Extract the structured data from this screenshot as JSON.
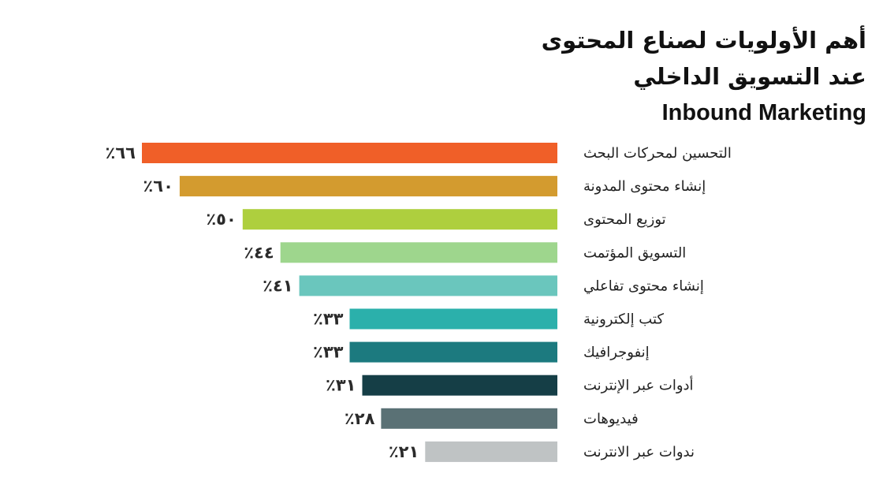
{
  "chart_data": {
    "type": "bar",
    "orientation": "horizontal",
    "title_lines": [
      "أهم الأولويات لصناع المحتوى",
      "عند التسويق الداخلي",
      "Inbound Marketing"
    ],
    "categories": [
      "التحسين لمحركات البحث",
      "إنشاء محتوى المدونة",
      "توزيع المحتوى",
      "التسويق المؤتمت",
      "إنشاء محتوى تفاعلي",
      "كتب إلكترونية",
      "إنفوجرافيك",
      "أدوات عبر الإنترنت",
      "فيديوهات",
      "ندوات عبر الانترنت"
    ],
    "values": [
      66,
      60,
      50,
      44,
      41,
      33,
      33,
      31,
      28,
      21
    ],
    "value_labels": [
      "٪٦٦",
      "٪٦٠",
      "٪٥٠",
      "٪٤٤",
      "٪٤١",
      "٪٣٣",
      "٪٣٣",
      "٪٣١",
      "٪٢٨",
      "٪٢١"
    ],
    "colors": [
      "#f05f28",
      "#d39b2f",
      "#aecf3e",
      "#9ed68d",
      "#6ac6bd",
      "#2bb0ab",
      "#1c7a7f",
      "#153e46",
      "#5a7175",
      "#bfc3c4"
    ],
    "xlim": [
      0,
      66
    ]
  }
}
